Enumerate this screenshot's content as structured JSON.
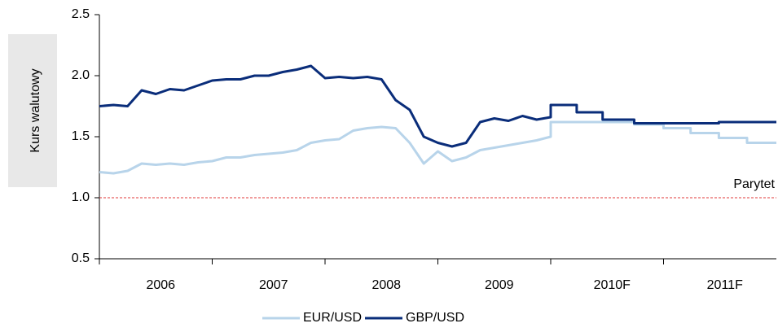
{
  "chart_data": {
    "type": "line",
    "y_label": "Kurs walutowy",
    "categories": [
      "2006",
      "2007",
      "2008",
      "2009",
      "2010F",
      "2011F"
    ],
    "xlim": [
      2006,
      2012
    ],
    "xticks": [
      2007,
      2008,
      2009,
      2010,
      2011
    ],
    "ylim": [
      0.5,
      2.5
    ],
    "yticks": [
      0.5,
      {
        "value": 1.0,
        "label": "1.0"
      },
      1.5,
      {
        "value": 2.0,
        "label": "2.0"
      },
      2.5
    ],
    "reference_lines": [
      {
        "value": 1.0,
        "label": "Parytet",
        "color": "#e03a3a"
      }
    ],
    "legend": "bottom",
    "series": [
      {
        "name": "EUR/USD",
        "color": "#b8d4ea",
        "x": [
          2006,
          2006.125,
          2006.25,
          2006.375,
          2006.5,
          2006.625,
          2006.75,
          2006.875,
          2007,
          2007.125,
          2007.25,
          2007.375,
          2007.5,
          2007.625,
          2007.75,
          2007.875,
          2008,
          2008.125,
          2008.25,
          2008.375,
          2008.5,
          2008.625,
          2008.75,
          2008.875,
          2009,
          2009.125,
          2009.25,
          2009.375,
          2009.5,
          2009.625,
          2009.75,
          2009.875,
          2010,
          2010,
          2010.74,
          2010.74,
          2011,
          2011,
          2011.24,
          2011.24,
          2011.49,
          2011.49,
          2011.74,
          2011.74,
          2012
        ],
        "values": [
          1.21,
          1.2,
          1.22,
          1.28,
          1.27,
          1.28,
          1.27,
          1.29,
          1.3,
          1.33,
          1.33,
          1.35,
          1.36,
          1.37,
          1.39,
          1.45,
          1.47,
          1.48,
          1.55,
          1.57,
          1.58,
          1.57,
          1.45,
          1.28,
          1.38,
          1.3,
          1.33,
          1.39,
          1.41,
          1.43,
          1.45,
          1.47,
          1.5,
          1.62,
          1.62,
          1.6,
          1.6,
          1.57,
          1.57,
          1.53,
          1.53,
          1.49,
          1.49,
          1.45,
          1.45
        ]
      },
      {
        "name": "GBP/USD",
        "color": "#0a2d7a",
        "x": [
          2006,
          2006.125,
          2006.25,
          2006.375,
          2006.5,
          2006.625,
          2006.75,
          2006.875,
          2007,
          2007.125,
          2007.25,
          2007.375,
          2007.5,
          2007.625,
          2007.75,
          2007.875,
          2008,
          2008.125,
          2008.25,
          2008.375,
          2008.5,
          2008.625,
          2008.75,
          2008.875,
          2009,
          2009.125,
          2009.25,
          2009.375,
          2009.5,
          2009.625,
          2009.75,
          2009.875,
          2010,
          2010,
          2010.23,
          2010.23,
          2010.46,
          2010.46,
          2010.74,
          2010.74,
          2011.49,
          2011.49,
          2012
        ],
        "values": [
          1.75,
          1.76,
          1.75,
          1.88,
          1.85,
          1.89,
          1.88,
          1.92,
          1.96,
          1.97,
          1.97,
          2.0,
          2.0,
          2.03,
          2.05,
          2.08,
          1.98,
          1.99,
          1.98,
          1.99,
          1.97,
          1.8,
          1.72,
          1.5,
          1.45,
          1.42,
          1.45,
          1.62,
          1.65,
          1.63,
          1.67,
          1.64,
          1.66,
          1.76,
          1.76,
          1.7,
          1.7,
          1.64,
          1.64,
          1.61,
          1.61,
          1.62,
          1.62
        ]
      }
    ]
  }
}
